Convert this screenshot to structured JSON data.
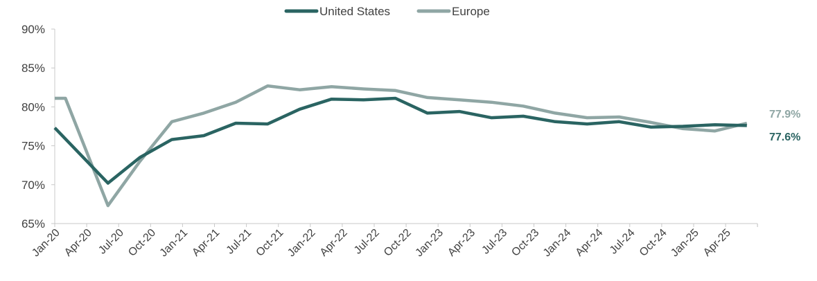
{
  "chart_data": {
    "type": "line",
    "title": "",
    "xlabel": "",
    "ylabel": "",
    "ylim": [
      65,
      90
    ],
    "y_ticks": [
      "65%",
      "70%",
      "75%",
      "80%",
      "85%",
      "90%"
    ],
    "y_tick_values": [
      65,
      70,
      75,
      80,
      85,
      90
    ],
    "x_tick_labels": [
      "Jan-20",
      "Apr-20",
      "Jul-20",
      "Oct-20",
      "Jan-21",
      "Apr-21",
      "Jul-21",
      "Oct-21",
      "Jan-22",
      "Apr-22",
      "Jul-22",
      "Oct-22",
      "Jan-23",
      "Apr-23",
      "Jul-23",
      "Oct-23",
      "Jan-24",
      "Apr-24",
      "Jul-24",
      "Oct-24",
      "Jan-25",
      "Apr-25"
    ],
    "legend_position": "top-center",
    "grid": false,
    "series": [
      {
        "name": "United States",
        "color": "#2a6462",
        "end_label": "77.6%",
        "points": [
          {
            "x": "2020-01",
            "y": 77.3
          },
          {
            "x": "2020-06",
            "y": 70.2
          },
          {
            "x": "2020-09",
            "y": 73.5
          },
          {
            "x": "2020-12",
            "y": 75.8
          },
          {
            "x": "2021-03",
            "y": 76.3
          },
          {
            "x": "2021-06",
            "y": 77.9
          },
          {
            "x": "2021-09",
            "y": 77.8
          },
          {
            "x": "2021-12",
            "y": 79.7
          },
          {
            "x": "2022-03",
            "y": 81.0
          },
          {
            "x": "2022-06",
            "y": 80.9
          },
          {
            "x": "2022-09",
            "y": 81.1
          },
          {
            "x": "2022-12",
            "y": 79.2
          },
          {
            "x": "2023-03",
            "y": 79.4
          },
          {
            "x": "2023-06",
            "y": 78.6
          },
          {
            "x": "2023-09",
            "y": 78.8
          },
          {
            "x": "2023-12",
            "y": 78.1
          },
          {
            "x": "2024-03",
            "y": 77.8
          },
          {
            "x": "2024-06",
            "y": 78.1
          },
          {
            "x": "2024-09",
            "y": 77.4
          },
          {
            "x": "2024-12",
            "y": 77.5
          },
          {
            "x": "2025-03",
            "y": 77.7
          },
          {
            "x": "2025-06",
            "y": 77.6
          }
        ]
      },
      {
        "name": "Europe",
        "color": "#8fa6a4",
        "end_label": "77.9%",
        "points": [
          {
            "x": "2020-01",
            "y": 81.1
          },
          {
            "x": "2020-02",
            "y": 81.1
          },
          {
            "x": "2020-06",
            "y": 67.3
          },
          {
            "x": "2020-09",
            "y": 73.0
          },
          {
            "x": "2020-12",
            "y": 78.1
          },
          {
            "x": "2021-03",
            "y": 79.2
          },
          {
            "x": "2021-06",
            "y": 80.6
          },
          {
            "x": "2021-09",
            "y": 82.7
          },
          {
            "x": "2021-12",
            "y": 82.2
          },
          {
            "x": "2022-03",
            "y": 82.6
          },
          {
            "x": "2022-06",
            "y": 82.3
          },
          {
            "x": "2022-09",
            "y": 82.1
          },
          {
            "x": "2022-12",
            "y": 81.2
          },
          {
            "x": "2023-03",
            "y": 80.9
          },
          {
            "x": "2023-06",
            "y": 80.6
          },
          {
            "x": "2023-09",
            "y": 80.1
          },
          {
            "x": "2023-12",
            "y": 79.2
          },
          {
            "x": "2024-03",
            "y": 78.6
          },
          {
            "x": "2024-06",
            "y": 78.7
          },
          {
            "x": "2024-09",
            "y": 78.0
          },
          {
            "x": "2024-12",
            "y": 77.2
          },
          {
            "x": "2025-03",
            "y": 76.9
          },
          {
            "x": "2025-06",
            "y": 77.9
          }
        ]
      }
    ]
  }
}
